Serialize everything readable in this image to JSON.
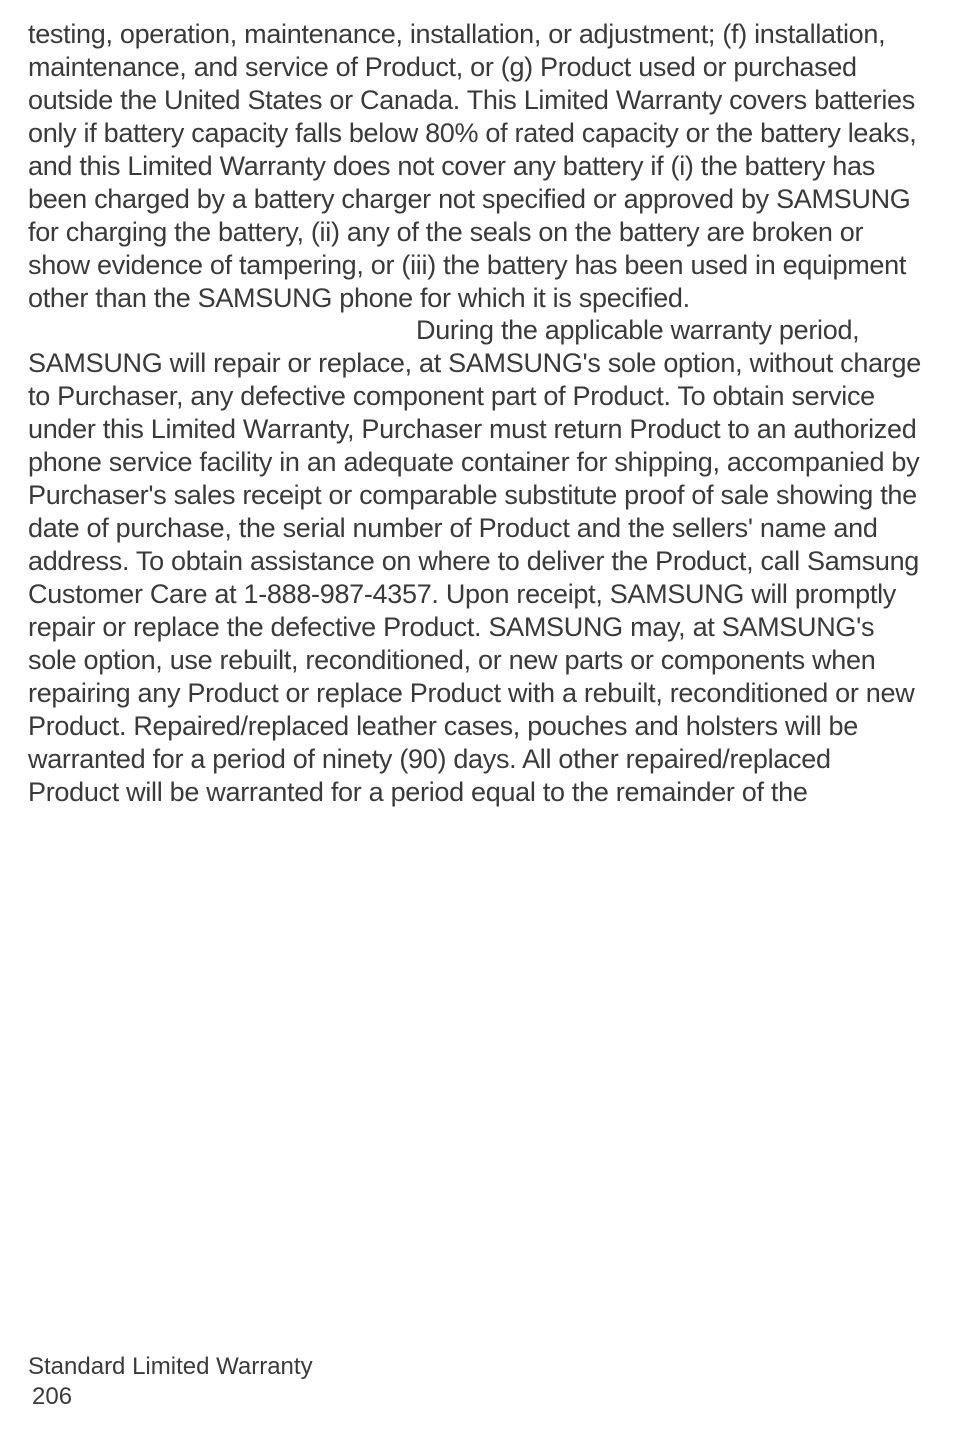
{
  "body": {
    "paragraph1": "testing, operation, maintenance, installation, or adjustment; (f) installation, maintenance, and service of Product, or (g) Product used or purchased outside the United States or Canada. This Limited Warranty covers batteries only if battery capacity falls below 80% of rated capacity or the battery leaks, and this Limited Warranty does not cover any battery if (i) the battery has been charged by a battery charger not specified or approved by SAMSUNG for charging the battery, (ii) any of the seals on the battery are broken or show evidence of tampering, or (iii) the battery has been used in equipment other than the SAMSUNG phone for which it is specified.",
    "paragraph2": "During the applicable warranty period, SAMSUNG will repair or replace, at SAMSUNG's sole option, without charge to Purchaser, any defective component part of Product. To obtain service under this Limited Warranty, Purchaser must return Product to an authorized phone service facility in an adequate container for shipping, accompanied by Purchaser's sales receipt or comparable substitute proof of sale showing the date of purchase, the serial number of Product and the sellers' name and address. To obtain assistance on where to deliver the Product, call Samsung Customer Care at 1-888-987-4357. Upon receipt, SAMSUNG will promptly repair or replace the defective Product. SAMSUNG may, at SAMSUNG's sole option, use rebuilt, reconditioned, or new parts or components when repairing any Product or replace Product with a rebuilt, reconditioned or new Product. Repaired/replaced leather cases, pouches and holsters will be warranted for a period of ninety (90) days. All other repaired/replaced Product will be warranted for a period equal to the remainder of the"
  },
  "footer": {
    "section_title": "Standard Limited Warranty",
    "page_number": "206"
  }
}
